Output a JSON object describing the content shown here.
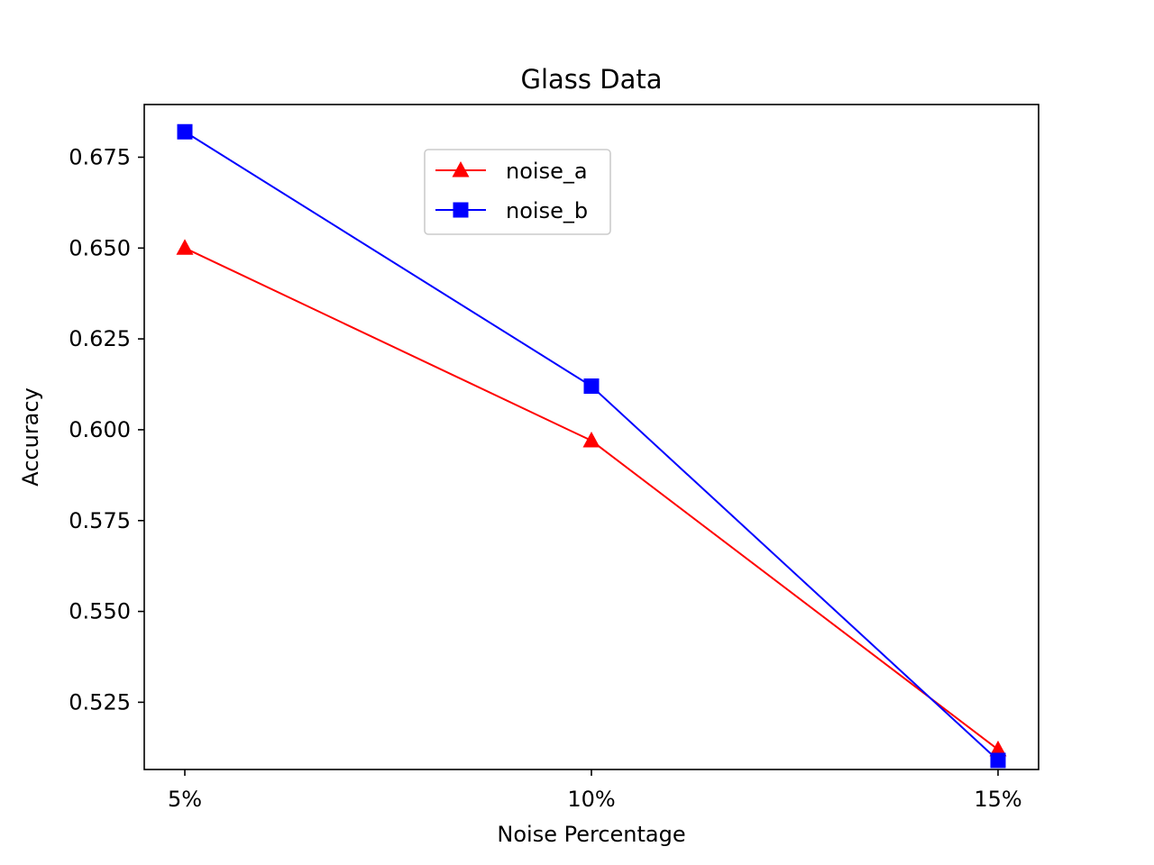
{
  "chart_data": {
    "type": "line",
    "title": "Glass Data",
    "xlabel": "Noise Percentage",
    "ylabel": "Accuracy",
    "categories": [
      "5%",
      "10%",
      "15%"
    ],
    "ylim": [
      0.5065,
      0.6895
    ],
    "yticks": [
      "0.525",
      "0.550",
      "0.575",
      "0.600",
      "0.625",
      "0.650",
      "0.675"
    ],
    "grid": false,
    "legend_position": "upper-center",
    "series": [
      {
        "name": "noise_a",
        "color": "#ff0000",
        "marker": "triangle",
        "values": [
          0.65,
          0.597,
          0.512
        ]
      },
      {
        "name": "noise_b",
        "color": "#0000ff",
        "marker": "square",
        "values": [
          0.682,
          0.612,
          0.509
        ]
      }
    ]
  }
}
